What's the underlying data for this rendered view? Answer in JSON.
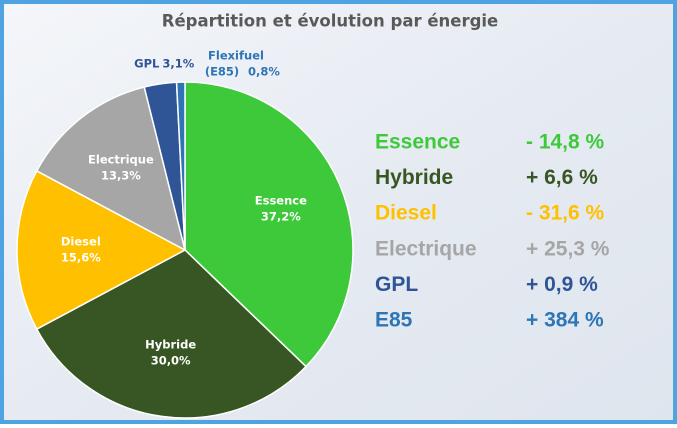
{
  "chart_data": {
    "type": "pie",
    "title": "Répartition et évolution par énergie",
    "categories": [
      "Essence",
      "Hybride",
      "Diesel",
      "Electrique",
      "GPL",
      "Flexifuel (E85)"
    ],
    "values": [
      37.2,
      30.0,
      15.6,
      13.3,
      3.1,
      0.8
    ],
    "value_labels": [
      "37,2%",
      "30,0%",
      "15,6%",
      "13,3%",
      "3,1%",
      "0,8%"
    ],
    "colors": [
      "#3ec93a",
      "#375623",
      "#ffc000",
      "#a6a6a6",
      "#2f5597",
      "#2e75b6"
    ],
    "evolution": [
      {
        "name": "Essence",
        "change": "- 14,8 %"
      },
      {
        "name": "Hybride",
        "change": "+ 6,6 %"
      },
      {
        "name": "Diesel",
        "change": "- 31,6 %"
      },
      {
        "name": "Electrique",
        "change": "+ 25,3 %"
      },
      {
        "name": "GPL",
        "change": "+ 0,9 %"
      },
      {
        "name": "E85",
        "change": "+ 384 %"
      }
    ]
  }
}
